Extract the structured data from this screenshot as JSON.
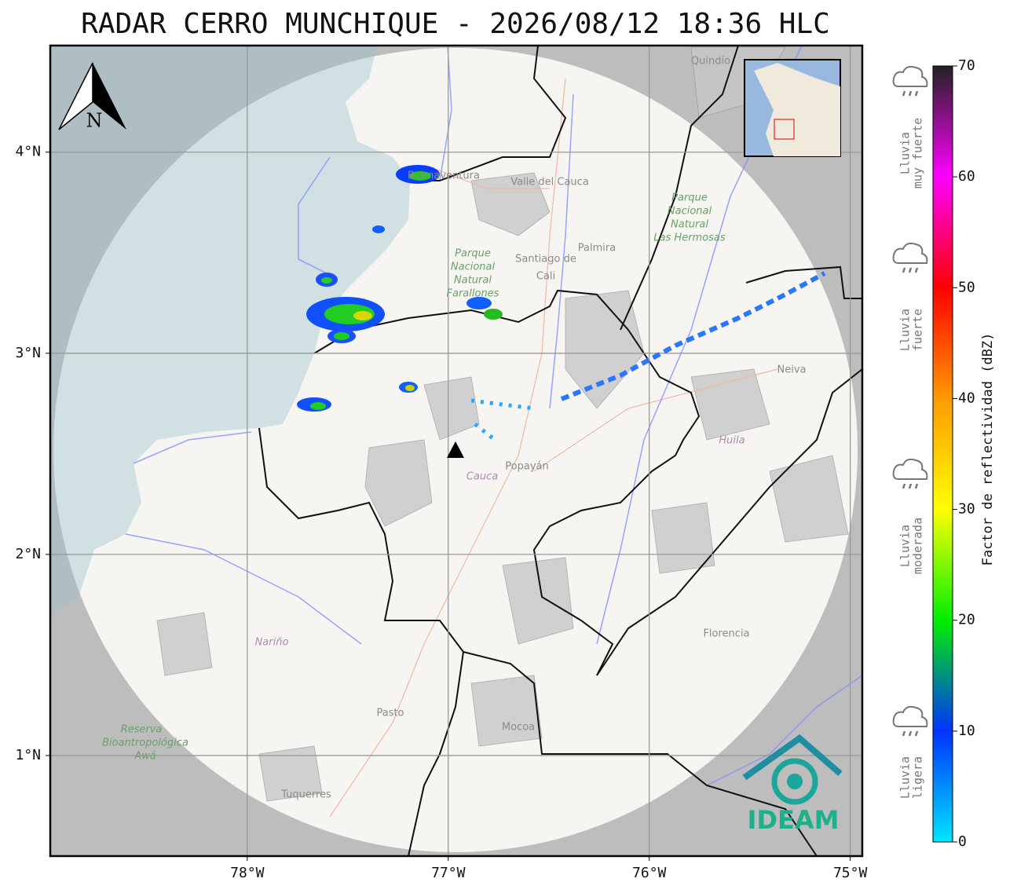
{
  "title": "RADAR CERRO MUNCHIQUE - 2026/08/12 18:36 HLC",
  "map": {
    "xlim": [
      -78.98,
      -74.94
    ],
    "ylim": [
      0.5,
      4.53
    ],
    "xticks": [
      {
        "value": -78,
        "label": "78°W"
      },
      {
        "value": -77,
        "label": "77°W"
      },
      {
        "value": -76,
        "label": "76°W"
      },
      {
        "value": -75,
        "label": "75°W"
      }
    ],
    "yticks": [
      {
        "value": 4,
        "label": "4°N"
      },
      {
        "value": 3,
        "label": "3°N"
      },
      {
        "value": 2,
        "label": "2°N"
      },
      {
        "value": 1,
        "label": "1°N"
      }
    ],
    "grid": true,
    "north": "N",
    "places": [
      "Santiago de",
      "Cali",
      "Palmira",
      "Popayán",
      "Neiva",
      "Pasto",
      "Mocoa",
      "Florencia",
      "Tuquerres",
      "Buenaventura",
      "Valle del Cauca",
      "Quindío"
    ],
    "departments": [
      "Cauca",
      "Huila",
      "Nariño"
    ],
    "parks": [
      "Parque",
      "Nacional",
      "Natural",
      "Farallones",
      "Parque",
      "Nacional",
      "Natural",
      "Las Hermosas",
      "Reserva",
      "Bioantropológica",
      "Awá"
    ]
  },
  "colorbar": {
    "label": "Factor de reflectividad (dBZ)",
    "range": [
      0,
      70
    ],
    "ticks": [
      0,
      10,
      20,
      30,
      40,
      50,
      60,
      70
    ],
    "colors": [
      "#00e5ff",
      "#0033ff",
      "#00ee00",
      "#ffff00",
      "#ff9900",
      "#ff0000",
      "#ff00ff",
      "#222222"
    ]
  },
  "legend": [
    [
      "Lluvia",
      "muy fuerte"
    ],
    [
      "Lluvia",
      "fuerte"
    ],
    [
      "Lluvia",
      "moderada"
    ],
    [
      "Lluvia",
      "ligera"
    ]
  ],
  "logo": "IDEAM"
}
